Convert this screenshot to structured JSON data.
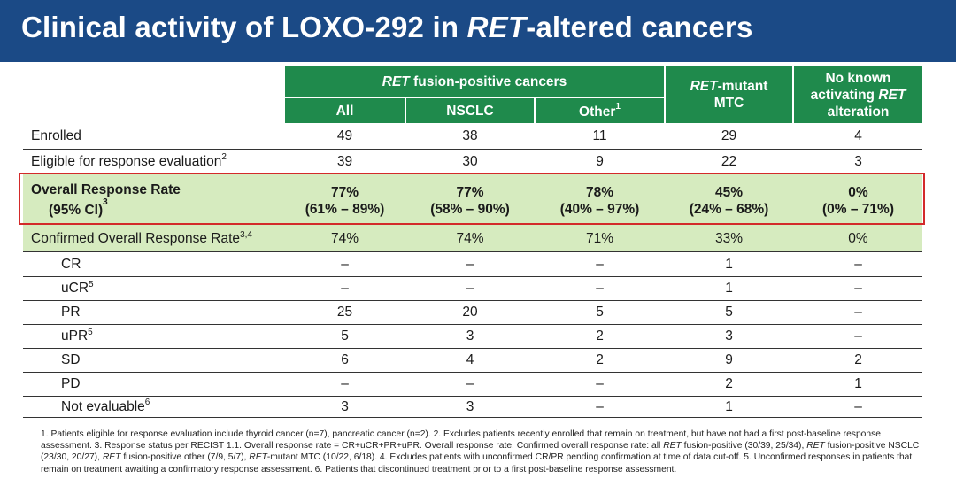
{
  "title": {
    "before": "Clinical activity of LOXO-292 in ",
    "italic": "RET",
    "after": "-altered cancers"
  },
  "header": {
    "group": {
      "italic": "RET",
      "text": " fusion-positive cancers"
    },
    "all": "All",
    "nsclc": "NSCLC",
    "other": "Other",
    "other_sup": "1",
    "mtc_line1_italic": "RET",
    "mtc_line1": "-mutant",
    "mtc_line2": "MTC",
    "noalt_line1": "No known",
    "noalt_line2": "activating ",
    "noalt_line2_italic": "RET",
    "noalt_line3": "alteration"
  },
  "rows": {
    "enrolled": {
      "label": "Enrolled",
      "values": [
        "49",
        "38",
        "11",
        "29",
        "4"
      ]
    },
    "eligible": {
      "label": "Eligible for response evaluation",
      "sup": "2",
      "values": [
        "39",
        "30",
        "9",
        "22",
        "3"
      ]
    },
    "orr": {
      "label": "Overall Response Rate",
      "sublabel": "(95% CI)",
      "sup": "3",
      "values": [
        "77%",
        "77%",
        "78%",
        "45%",
        "0%"
      ],
      "ci": [
        "(61% – 89%)",
        "(58% – 90%)",
        "(40% – 97%)",
        "(24% – 68%)",
        "(0% – 71%)"
      ]
    },
    "corr": {
      "label": "Confirmed Overall Response Rate",
      "sup": "3,4",
      "values": [
        "74%",
        "74%",
        "71%",
        "33%",
        "0%"
      ]
    },
    "cr": {
      "label": "CR",
      "values": [
        "–",
        "–",
        "–",
        "1",
        "–"
      ]
    },
    "ucr": {
      "label": "uCR",
      "sup": "5",
      "values": [
        "–",
        "–",
        "–",
        "1",
        "–"
      ]
    },
    "pr": {
      "label": "PR",
      "values": [
        "25",
        "20",
        "5",
        "5",
        "–"
      ]
    },
    "upr": {
      "label": "uPR",
      "sup": "5",
      "values": [
        "5",
        "3",
        "2",
        "3",
        "–"
      ]
    },
    "sd": {
      "label": "SD",
      "values": [
        "6",
        "4",
        "2",
        "9",
        "2"
      ]
    },
    "pd": {
      "label": "PD",
      "values": [
        "–",
        "–",
        "–",
        "2",
        "1"
      ]
    },
    "ne": {
      "label": "Not evaluable",
      "sup": "6",
      "values": [
        "3",
        "3",
        "–",
        "1",
        "–"
      ]
    }
  },
  "footnotes": {
    "p1": "1. Patients eligible for response evaluation include thyroid cancer (n=7), pancreatic cancer (n=2). 2. Excludes patients recently enrolled that remain on treatment, but have not had a first post-baseline response assessment. 3. Response status per RECIST 1.1. Overall response rate = CR+uCR+PR+uPR. Overall response rate, Confirmed overall response rate: all ",
    "ret1": "RET",
    "p2": " fusion-positive (30/39, 25/34), ",
    "ret2": "RET",
    "p3": " fusion-positive NSCLC (23/30, 20/27), ",
    "ret3": "RET",
    "p4": " fusion-positive other (7/9, 5/7), ",
    "ret4": "RET",
    "p5": "-mutant MTC (10/22, 6/18). 4. Excludes patients with unconfirmed CR/PR pending confirmation at time of data cut-off. 5. Unconfirmed responses in patients that remain on treatment awaiting a confirmatory response assessment. 6. Patients that discontinued treatment prior to a first post-baseline response assessment."
  },
  "colors": {
    "title_bg": "#1b4a86",
    "header_green": "#1f8a4c",
    "highlight_green": "#d6ebbf",
    "highlight_border": "#d32a2a"
  }
}
